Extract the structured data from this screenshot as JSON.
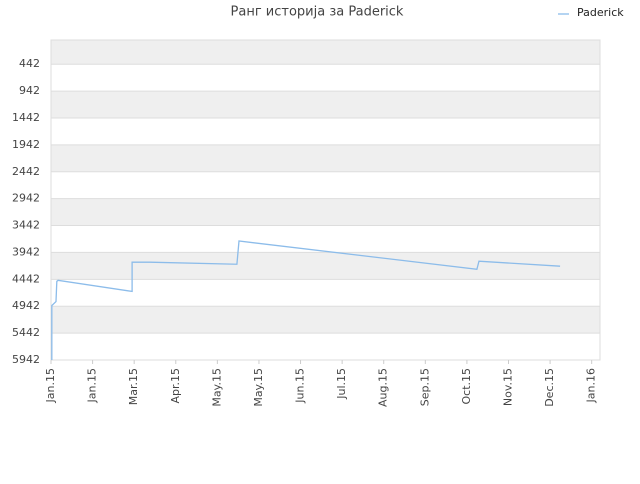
{
  "chart_data": {
    "type": "line",
    "title": "Ранг историја за Paderick",
    "series": [
      {
        "name": "Paderick",
        "color": "#8cbcea",
        "x": [
          0.02,
          0.02,
          0.12,
          0.14,
          0.17,
          1.95,
          1.95,
          2.38,
          4.47,
          4.52,
          10.24,
          10.29,
          12.24
        ],
        "values": [
          5942,
          4930,
          4855,
          4480,
          4461,
          4667,
          4123,
          4123,
          4161,
          3730,
          4255,
          4105,
          4198
        ]
      }
    ],
    "xlim": [
      0,
      13.2
    ],
    "xticks": [
      {
        "value": 0,
        "label": "Jan.15"
      },
      {
        "value": 1,
        "label": "Jan.15"
      },
      {
        "value": 2,
        "label": "Mar.15"
      },
      {
        "value": 3,
        "label": "Apr.15"
      },
      {
        "value": 4,
        "label": "May.15"
      },
      {
        "value": 5,
        "label": "May.15"
      },
      {
        "value": 6,
        "label": "Jun.15"
      },
      {
        "value": 7,
        "label": "Jul.15"
      },
      {
        "value": 8,
        "label": "Aug.15"
      },
      {
        "value": 9,
        "label": "Sep.15"
      },
      {
        "value": 10,
        "label": "Oct.15"
      },
      {
        "value": 11,
        "label": "Nov.15"
      },
      {
        "value": 12,
        "label": "Dec.15"
      },
      {
        "value": 13,
        "label": "Jan.16"
      }
    ],
    "ylim": [
      5942,
      -8
    ],
    "yticks": [
      442,
      942,
      1442,
      1942,
      2442,
      2942,
      3442,
      3942,
      4442,
      4942,
      5442,
      5942
    ],
    "grid": true,
    "legend": "top-right"
  }
}
